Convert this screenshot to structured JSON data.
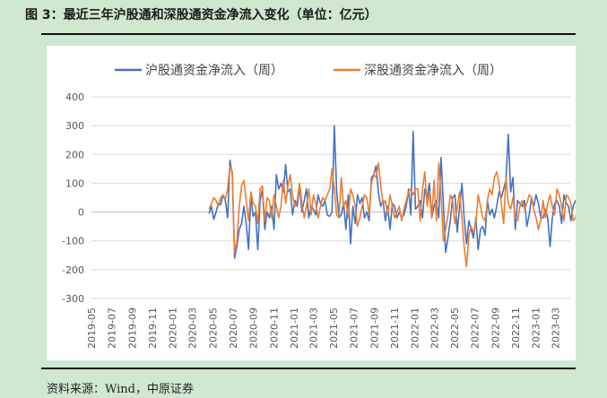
{
  "figure": {
    "title": "图 3：最近三年沪股通和深股通资金净流入变化（单位：亿元）",
    "source": "资料来源：Wind，中原证券"
  },
  "colors": {
    "series_1": "#4472c4",
    "series_2": "#ed7d31",
    "grid": "#d9d9d9",
    "background": "#cfe8cf"
  },
  "chart_data": {
    "type": "line",
    "title": "",
    "xlabel": "",
    "ylabel": "",
    "ylim": [
      -300,
      400
    ],
    "yticks": [
      400,
      300,
      200,
      100,
      0,
      -100,
      -200,
      -300
    ],
    "xticks": [
      "2019-05",
      "2019-07",
      "2019-09",
      "2019-11",
      "2020-01",
      "2020-03",
      "2020-05",
      "2020-07",
      "2020-09",
      "2020-11",
      "2021-01",
      "2021-03",
      "2021-05",
      "2021-07",
      "2021-09",
      "2021-11",
      "2022-01",
      "2022-03",
      "2022-05",
      "2022-07",
      "2022-09",
      "2022-11",
      "2023-01",
      "2023-03"
    ],
    "grid": true,
    "legend_position": "top",
    "x_start": "2019-05-01",
    "x_end": "2023-04-15",
    "series": [
      {
        "name": "沪股通资金净流入（周）",
        "start_week": "2020-04-20",
        "values": [
          -5,
          20,
          -25,
          0,
          30,
          25,
          60,
          40,
          -20,
          180,
          130,
          -160,
          -120,
          -60,
          -40,
          20,
          -40,
          -130,
          60,
          -15,
          0,
          -130,
          40,
          80,
          -60,
          0,
          -20,
          20,
          -60,
          130,
          80,
          100,
          70,
          165,
          70,
          80,
          -10,
          40,
          20,
          90,
          0,
          40,
          80,
          -20,
          20,
          10,
          -10,
          60,
          30,
          20,
          40,
          -10,
          -15,
          0,
          300,
          70,
          -20,
          -10,
          30,
          -60,
          60,
          -110,
          20,
          -40,
          60,
          30,
          50,
          -20,
          0,
          -30,
          120,
          130,
          160,
          70,
          20,
          40,
          -30,
          20,
          -60,
          30,
          20,
          -20,
          0,
          -20,
          -10,
          20,
          80,
          -10,
          280,
          10,
          20,
          40,
          -20,
          80,
          50,
          100,
          -20,
          20,
          40,
          -20,
          190,
          30,
          -140,
          -90,
          -30,
          50,
          60,
          -70,
          20,
          100,
          -20,
          -110,
          -30,
          -60,
          -90,
          -20,
          -130,
          -60,
          -50,
          -80,
          40,
          -10,
          10,
          -20,
          20,
          70,
          50,
          80,
          110,
          270,
          70,
          120,
          -60,
          40,
          30,
          20,
          40,
          -50,
          -10,
          50,
          20,
          60,
          30,
          -20,
          -20,
          10,
          -20,
          -120,
          -20,
          30,
          40,
          20,
          -40,
          60,
          30,
          20,
          -30,
          20,
          40,
          20,
          -30,
          -10,
          50,
          20,
          0,
          -40,
          -70,
          10,
          20,
          -180,
          -30,
          40,
          20,
          40,
          80,
          40,
          20,
          180,
          60,
          -20,
          -20,
          50,
          40,
          10,
          40,
          80,
          30,
          -20,
          -20,
          60,
          40,
          230,
          250,
          180,
          80,
          -10,
          40,
          60,
          20,
          -20,
          30,
          60,
          -20,
          -10,
          -60,
          -10,
          60,
          40,
          20,
          -20,
          40,
          -20,
          -10
        ]
      },
      {
        "name": "深股通资金净流入（周）",
        "start_week": "2020-04-20",
        "values": [
          10,
          30,
          50,
          40,
          20,
          50,
          60,
          45,
          80,
          160,
          140,
          -140,
          -100,
          20,
          90,
          110,
          40,
          -30,
          70,
          30,
          20,
          -40,
          80,
          90,
          -30,
          50,
          40,
          -20,
          60,
          20,
          -20,
          20,
          110,
          30,
          90,
          130,
          60,
          20,
          40,
          100,
          30,
          -20,
          20,
          80,
          -10,
          60,
          30,
          -20,
          20,
          50,
          40,
          60,
          80,
          150,
          80,
          -10,
          -20,
          120,
          20,
          40,
          -20,
          80,
          60,
          20,
          -50,
          -20,
          20,
          60,
          50,
          -10,
          100,
          130,
          120,
          170,
          90,
          30,
          40,
          -10,
          60,
          20,
          -20,
          0,
          20,
          -30,
          10,
          40,
          70,
          80,
          60,
          80,
          80,
          -30,
          80,
          140,
          20,
          70,
          -20,
          110,
          -30,
          170,
          60,
          -100,
          -60,
          -10,
          60,
          40,
          -40,
          20,
          70,
          -20,
          -120,
          -190,
          -80,
          -50,
          -70,
          -40,
          60,
          20,
          -20,
          -30,
          40,
          80,
          60,
          120,
          140,
          100,
          30,
          -40,
          120,
          30,
          10,
          50,
          -20,
          -30,
          20,
          40,
          10,
          30,
          60,
          50,
          10,
          -20,
          -60,
          -30,
          40,
          -20,
          30,
          60,
          20,
          -10,
          80,
          60,
          20,
          -30,
          60,
          50,
          30,
          -30,
          -20,
          10,
          70,
          30,
          -40,
          -80,
          -20,
          20,
          -130,
          40,
          60,
          20,
          50,
          30,
          60,
          80,
          180,
          140,
          60,
          -30,
          20,
          40,
          80,
          70,
          30,
          60,
          40,
          -20,
          -20,
          40,
          80,
          220,
          240,
          160,
          100,
          -20,
          10,
          70,
          30,
          -70,
          30,
          -60,
          -20,
          -60,
          120,
          60,
          30,
          -30,
          50,
          -40,
          10,
          -10,
          -20
        ]
      }
    ]
  }
}
